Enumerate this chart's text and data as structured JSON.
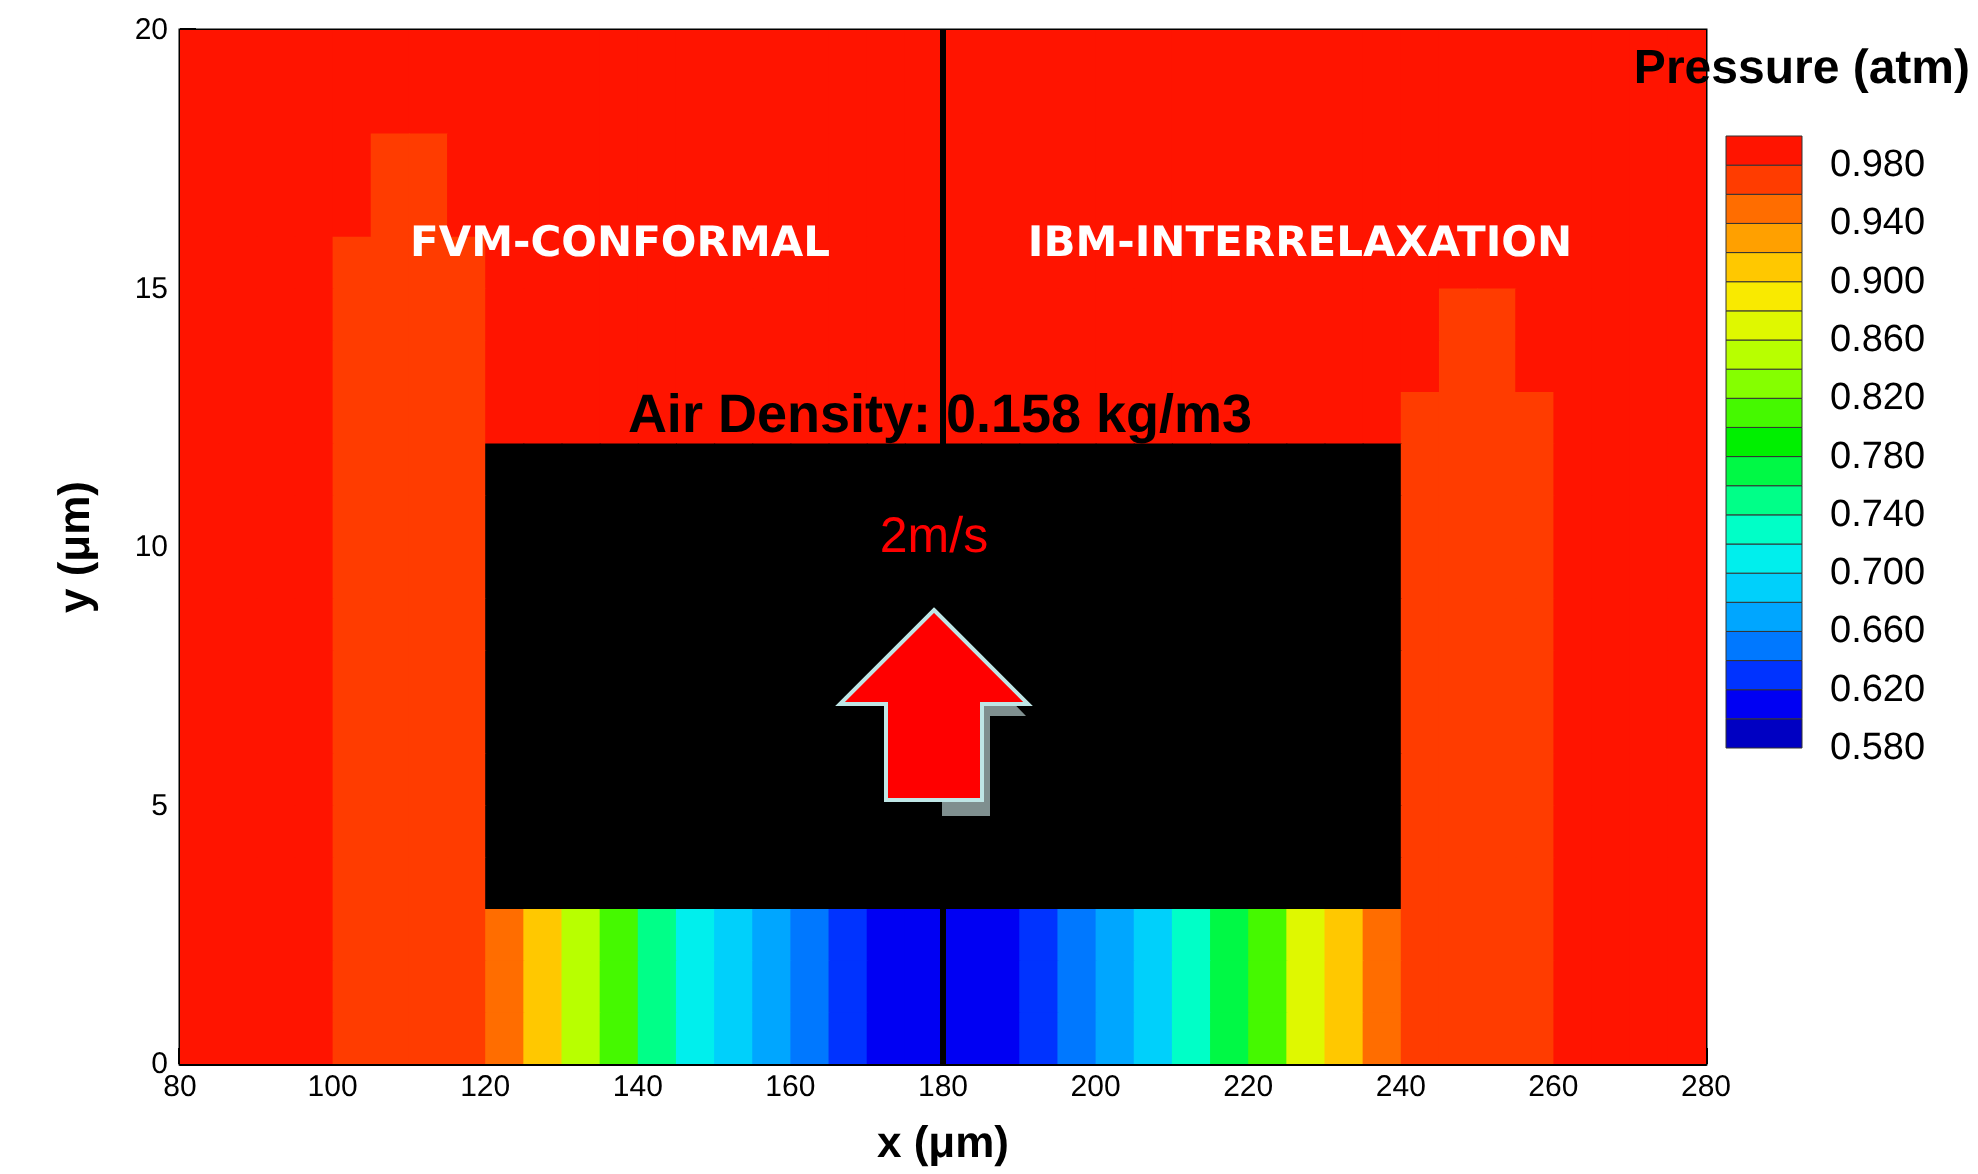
{
  "chart_data": {
    "type": "heatmap",
    "xlabel": "x (μm)",
    "ylabel": "y (μm)",
    "clabel": "Pressure (atm)",
    "x": [
      82.5,
      87.5,
      92.5,
      97.5,
      102.5,
      107.5,
      112.5,
      117.5,
      122.5,
      127.5,
      132.5,
      137.5,
      142.5,
      147.5,
      152.5,
      157.5,
      162.5,
      167.5,
      172.5,
      177.5,
      182.5,
      187.5,
      192.5,
      197.5,
      202.5,
      207.5,
      212.5,
      217.5,
      222.5,
      227.5,
      232.5,
      237.5,
      242.5,
      247.5,
      252.5,
      257.5,
      262.5,
      267.5,
      272.5,
      277.5
    ],
    "y": [
      19.5,
      18.5,
      17.5,
      16.5,
      15.5,
      14.5,
      13.5,
      12.5,
      11.5,
      10.5,
      9.5,
      8.5,
      7.5,
      6.5,
      5.5,
      4.5,
      3.5,
      2.5,
      1.5,
      0.5
    ],
    "xlim": [
      80,
      280
    ],
    "xticks": [
      80,
      100,
      120,
      140,
      160,
      180,
      200,
      220,
      240,
      260,
      280
    ],
    "ylim": [
      0,
      20
    ],
    "yticks": [
      0,
      5,
      10,
      15,
      20
    ],
    "clim": [
      0.58,
      1.0
    ],
    "cticks": [
      {
        "value": 0.58,
        "label": "0.580"
      },
      {
        "value": 0.62,
        "label": "0.620"
      },
      {
        "value": 0.66,
        "label": "0.660"
      },
      {
        "value": 0.7,
        "label": "0.700"
      },
      {
        "value": 0.74,
        "label": "0.740"
      },
      {
        "value": 0.78,
        "label": "0.780"
      },
      {
        "value": 0.82,
        "label": "0.820"
      },
      {
        "value": 0.86,
        "label": "0.860"
      },
      {
        "value": 0.9,
        "label": "0.900"
      },
      {
        "value": 0.94,
        "label": "0.940"
      },
      {
        "value": 0.98,
        "label": "0.980"
      }
    ],
    "cells": [
      [
        0.99,
        0.99,
        0.99,
        0.99,
        0.99,
        0.99,
        0.99,
        0.99,
        0.99,
        0.99,
        0.99,
        0.99,
        0.99,
        0.99,
        0.99,
        0.99,
        0.99,
        0.99,
        0.99,
        0.99,
        0.99,
        0.99,
        0.99,
        0.99,
        0.99,
        0.99,
        0.99,
        0.99,
        0.99,
        0.99,
        0.99,
        0.99,
        0.99,
        0.99,
        0.99,
        0.99,
        0.99,
        0.99,
        0.99,
        0.99
      ],
      [
        0.99,
        0.99,
        0.99,
        0.99,
        0.99,
        0.99,
        0.99,
        0.99,
        0.99,
        0.99,
        0.99,
        0.99,
        0.99,
        0.99,
        0.99,
        0.99,
        0.99,
        0.99,
        0.99,
        0.99,
        0.99,
        0.99,
        0.99,
        0.99,
        0.99,
        0.99,
        0.99,
        0.99,
        0.99,
        0.99,
        0.99,
        0.99,
        0.99,
        0.99,
        0.99,
        0.99,
        0.99,
        0.99,
        0.99,
        0.99
      ],
      [
        0.99,
        0.99,
        0.99,
        0.99,
        0.99,
        0.97,
        0.97,
        0.99,
        0.99,
        0.99,
        0.99,
        0.99,
        0.99,
        0.99,
        0.99,
        0.99,
        0.99,
        0.99,
        0.99,
        0.99,
        0.99,
        0.99,
        0.99,
        0.99,
        0.99,
        0.99,
        0.99,
        0.99,
        0.99,
        0.99,
        0.99,
        0.99,
        0.99,
        0.99,
        0.99,
        0.99,
        0.99,
        0.99,
        0.99,
        0.99
      ],
      [
        0.99,
        0.99,
        0.99,
        0.99,
        0.99,
        0.97,
        0.97,
        0.99,
        0.99,
        0.99,
        0.99,
        0.99,
        0.99,
        0.99,
        0.99,
        0.99,
        0.99,
        0.99,
        0.99,
        0.99,
        0.99,
        0.99,
        0.99,
        0.99,
        0.99,
        0.99,
        0.99,
        0.99,
        0.99,
        0.99,
        0.99,
        0.99,
        0.99,
        0.99,
        0.99,
        0.99,
        0.99,
        0.99,
        0.99,
        0.99
      ],
      [
        0.99,
        0.99,
        0.99,
        0.99,
        0.97,
        0.97,
        0.97,
        0.97,
        0.99,
        0.99,
        0.99,
        0.99,
        0.99,
        0.99,
        0.99,
        0.99,
        0.99,
        0.99,
        0.99,
        0.99,
        0.99,
        0.99,
        0.99,
        0.99,
        0.99,
        0.99,
        0.99,
        0.99,
        0.99,
        0.99,
        0.99,
        0.99,
        0.99,
        0.99,
        0.99,
        0.99,
        0.99,
        0.99,
        0.99,
        0.99
      ],
      [
        0.99,
        0.99,
        0.99,
        0.99,
        0.97,
        0.97,
        0.97,
        0.97,
        0.99,
        0.99,
        0.99,
        0.99,
        0.99,
        0.99,
        0.99,
        0.99,
        0.99,
        0.99,
        0.99,
        0.99,
        0.99,
        0.99,
        0.99,
        0.99,
        0.99,
        0.99,
        0.99,
        0.99,
        0.99,
        0.99,
        0.99,
        0.99,
        0.99,
        0.97,
        0.97,
        0.99,
        0.99,
        0.99,
        0.99,
        0.99
      ],
      [
        0.99,
        0.99,
        0.99,
        0.99,
        0.97,
        0.97,
        0.97,
        0.97,
        0.99,
        0.99,
        0.99,
        0.99,
        0.99,
        0.99,
        0.99,
        0.99,
        0.99,
        0.99,
        0.99,
        0.99,
        0.99,
        0.99,
        0.99,
        0.99,
        0.99,
        0.99,
        0.99,
        0.99,
        0.99,
        0.99,
        0.99,
        0.99,
        0.99,
        0.97,
        0.97,
        0.99,
        0.99,
        0.99,
        0.99,
        0.99
      ],
      [
        0.99,
        0.99,
        0.99,
        0.99,
        0.97,
        0.97,
        0.97,
        0.97,
        0.99,
        0.99,
        0.99,
        0.99,
        0.99,
        0.99,
        0.99,
        0.99,
        0.99,
        0.99,
        0.99,
        0.99,
        0.99,
        0.99,
        0.99,
        0.99,
        0.99,
        0.99,
        0.99,
        0.99,
        0.99,
        0.99,
        0.99,
        0.99,
        0.97,
        0.97,
        0.97,
        0.97,
        0.99,
        0.99,
        0.99,
        0.99
      ],
      [
        0.99,
        0.99,
        0.99,
        0.99,
        0.97,
        0.97,
        0.97,
        0.97,
        null,
        null,
        null,
        null,
        null,
        null,
        null,
        null,
        null,
        null,
        null,
        null,
        null,
        null,
        null,
        null,
        null,
        null,
        null,
        null,
        null,
        null,
        null,
        null,
        0.97,
        0.97,
        0.97,
        0.97,
        0.99,
        0.99,
        0.99,
        0.99
      ],
      [
        0.99,
        0.99,
        0.99,
        0.99,
        0.97,
        0.97,
        0.97,
        0.97,
        null,
        null,
        null,
        null,
        null,
        null,
        null,
        null,
        null,
        null,
        null,
        null,
        null,
        null,
        null,
        null,
        null,
        null,
        null,
        null,
        null,
        null,
        null,
        null,
        0.97,
        0.97,
        0.97,
        0.97,
        0.99,
        0.99,
        0.99,
        0.99
      ],
      [
        0.99,
        0.99,
        0.99,
        0.99,
        0.97,
        0.97,
        0.97,
        0.97,
        null,
        null,
        null,
        null,
        null,
        null,
        null,
        null,
        null,
        null,
        null,
        null,
        null,
        null,
        null,
        null,
        null,
        null,
        null,
        null,
        null,
        null,
        null,
        null,
        0.97,
        0.97,
        0.97,
        0.97,
        0.99,
        0.99,
        0.99,
        0.99
      ],
      [
        0.99,
        0.99,
        0.99,
        0.99,
        0.97,
        0.97,
        0.97,
        0.97,
        null,
        null,
        null,
        null,
        null,
        null,
        null,
        null,
        null,
        null,
        null,
        null,
        null,
        null,
        null,
        null,
        null,
        null,
        null,
        null,
        null,
        null,
        null,
        null,
        0.97,
        0.97,
        0.97,
        0.97,
        0.99,
        0.99,
        0.99,
        0.99
      ],
      [
        0.99,
        0.99,
        0.99,
        0.99,
        0.97,
        0.97,
        0.97,
        0.97,
        null,
        null,
        null,
        null,
        null,
        null,
        null,
        null,
        null,
        null,
        null,
        null,
        null,
        null,
        null,
        null,
        null,
        null,
        null,
        null,
        null,
        null,
        null,
        null,
        0.97,
        0.97,
        0.97,
        0.97,
        0.99,
        0.99,
        0.99,
        0.99
      ],
      [
        0.99,
        0.99,
        0.99,
        0.99,
        0.97,
        0.97,
        0.97,
        0.97,
        null,
        null,
        null,
        null,
        null,
        null,
        null,
        null,
        null,
        null,
        null,
        null,
        null,
        null,
        null,
        null,
        null,
        null,
        null,
        null,
        null,
        null,
        null,
        null,
        0.97,
        0.97,
        0.97,
        0.97,
        0.99,
        0.99,
        0.99,
        0.99
      ],
      [
        0.99,
        0.99,
        0.99,
        0.99,
        0.97,
        0.97,
        0.97,
        0.97,
        null,
        null,
        null,
        null,
        null,
        null,
        null,
        null,
        null,
        null,
        null,
        null,
        null,
        null,
        null,
        null,
        null,
        null,
        null,
        null,
        null,
        null,
        null,
        null,
        0.97,
        0.97,
        0.97,
        0.97,
        0.99,
        0.99,
        0.99,
        0.99
      ],
      [
        0.99,
        0.99,
        0.99,
        0.99,
        0.97,
        0.97,
        0.97,
        0.97,
        null,
        null,
        null,
        null,
        null,
        null,
        null,
        null,
        null,
        null,
        null,
        null,
        null,
        null,
        null,
        null,
        null,
        null,
        null,
        null,
        null,
        null,
        null,
        null,
        0.97,
        0.97,
        0.97,
        0.97,
        0.99,
        0.99,
        0.99,
        0.99
      ],
      [
        0.99,
        0.99,
        0.99,
        0.99,
        0.97,
        0.97,
        0.97,
        0.97,
        null,
        null,
        null,
        null,
        null,
        null,
        null,
        null,
        null,
        null,
        null,
        null,
        null,
        null,
        null,
        null,
        null,
        null,
        null,
        null,
        null,
        null,
        null,
        null,
        0.97,
        0.97,
        0.97,
        0.97,
        0.99,
        0.99,
        0.99,
        0.99
      ],
      [
        0.99,
        0.99,
        0.99,
        0.99,
        0.97,
        0.97,
        0.97,
        0.97,
        0.95,
        0.91,
        0.85,
        0.81,
        0.75,
        0.71,
        0.69,
        0.67,
        0.65,
        0.63,
        0.61,
        0.61,
        0.61,
        0.61,
        0.63,
        0.65,
        0.67,
        0.69,
        0.73,
        0.77,
        0.81,
        0.87,
        0.91,
        0.95,
        0.97,
        0.97,
        0.97,
        0.97,
        0.99,
        0.99,
        0.99,
        0.99
      ],
      [
        0.99,
        0.99,
        0.99,
        0.99,
        0.97,
        0.97,
        0.97,
        0.97,
        0.95,
        0.91,
        0.85,
        0.81,
        0.75,
        0.71,
        0.69,
        0.67,
        0.65,
        0.63,
        0.61,
        0.61,
        0.61,
        0.61,
        0.63,
        0.65,
        0.67,
        0.69,
        0.73,
        0.77,
        0.81,
        0.87,
        0.91,
        0.95,
        0.97,
        0.97,
        0.97,
        0.97,
        0.99,
        0.99,
        0.99,
        0.99
      ],
      [
        0.99,
        0.99,
        0.99,
        0.99,
        0.97,
        0.97,
        0.97,
        0.97,
        0.95,
        0.91,
        0.85,
        0.81,
        0.75,
        0.71,
        0.69,
        0.67,
        0.65,
        0.63,
        0.61,
        0.61,
        0.61,
        0.61,
        0.63,
        0.65,
        0.67,
        0.69,
        0.73,
        0.77,
        0.81,
        0.87,
        0.91,
        0.95,
        0.97,
        0.97,
        0.97,
        0.97,
        0.99,
        0.99,
        0.99,
        0.99
      ]
    ],
    "ref_lines": [
      {
        "axis": "x",
        "value": 180,
        "color": "#000000"
      }
    ],
    "annotations": [
      "FVM-CONFORMAL",
      "IBM-INTERRELAXATION",
      "Air Density: 0.158 kg/m3",
      "2m/s"
    ]
  }
}
